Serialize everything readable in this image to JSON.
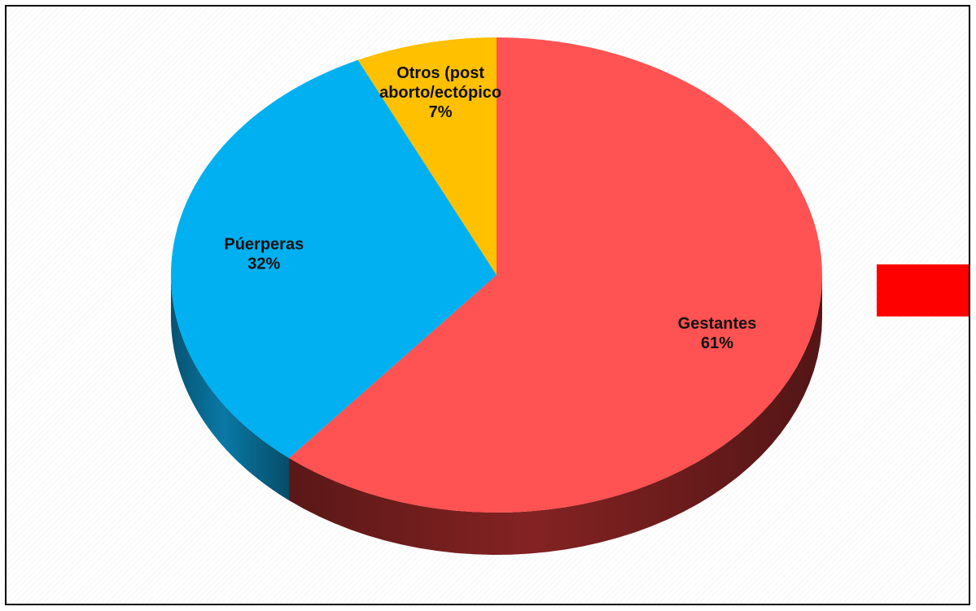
{
  "chart_data": {
    "type": "pie",
    "three_d": true,
    "categories": [
      "Gestantes",
      "Púerperas",
      "Otros (post aborto/ectópico"
    ],
    "values": [
      61,
      32,
      7
    ],
    "data_labels": [
      {
        "lines": [
          "Gestantes",
          "61%"
        ]
      },
      {
        "lines": [
          "Púerperas",
          "32%"
        ]
      },
      {
        "lines": [
          "Otros (post",
          "aborto/ectópico",
          "7%"
        ]
      }
    ],
    "colors": [
      "#FF5252",
      "#00B0F0",
      "#FFC000"
    ],
    "side_colors": [
      "#8B2424",
      "#0A7FAE",
      "#C99600"
    ],
    "legend": {
      "color": "#FF0000",
      "placement": "right"
    }
  }
}
